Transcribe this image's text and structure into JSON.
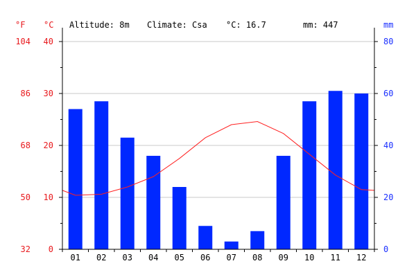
{
  "header": {
    "altitude": "Altitude: 8m",
    "climate": "Climate: Csa",
    "avg_temp": "°C: 16.7",
    "precip_total": "mm: 447"
  },
  "units": {
    "fahrenheit": "°F",
    "celsius": "°C",
    "millimeters": "mm"
  },
  "colors": {
    "temperature_line": "#ff2020",
    "precip_bar": "#0028ff",
    "left_ticks": "#e8191d",
    "right_ticks": "#1a2fff"
  },
  "chart_data": {
    "type": "bar",
    "categories": [
      "01",
      "02",
      "03",
      "04",
      "05",
      "06",
      "07",
      "08",
      "09",
      "10",
      "11",
      "12"
    ],
    "series": [
      {
        "kind": "bar",
        "axis": "mm",
        "values": [
          54,
          57,
          43,
          36,
          24,
          9,
          3,
          7,
          36,
          57,
          61,
          60
        ]
      },
      {
        "kind": "line",
        "axis": "celsius",
        "values": [
          10.4,
          10.6,
          12.0,
          14.0,
          17.5,
          21.5,
          24.0,
          24.6,
          22.3,
          18.3,
          14.3,
          11.5
        ]
      }
    ],
    "celsius_axis": {
      "range": [
        0,
        40
      ],
      "ticks": [
        "0",
        "10",
        "20",
        "30",
        "40"
      ]
    },
    "fahrenheit_axis": {
      "range": [
        32,
        104
      ],
      "ticks": [
        "32",
        "50",
        "68",
        "86",
        "104"
      ]
    },
    "mm_axis": {
      "range": [
        0,
        80
      ],
      "ticks": [
        "0",
        "20",
        "40",
        "60",
        "80"
      ]
    },
    "grid": true
  }
}
